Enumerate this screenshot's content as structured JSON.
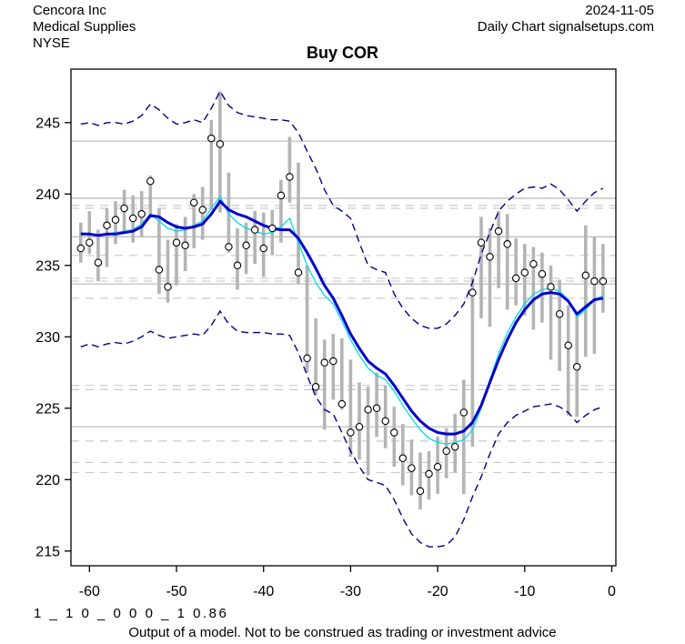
{
  "header": {
    "company": "Cencora Inc",
    "sector": "Medical Supplies",
    "exchange": "NYSE",
    "date": "2024-11-05",
    "source": "Daily Chart signalsetups.com"
  },
  "title": "Buy COR",
  "footer": {
    "model_code": "1 _ 1 0 _ 0 0 0 _ 1 0.86",
    "disclaimer": "Output of a model. Not to be construed as trading or investment advice"
  },
  "chart_data": {
    "type": "line",
    "title": "Buy COR",
    "xlabel": "",
    "ylabel": "",
    "x_ticks": [
      -60,
      -50,
      -40,
      -30,
      -20,
      -10,
      0
    ],
    "y_ticks": [
      215,
      220,
      225,
      230,
      235,
      240,
      245
    ],
    "xlim": [
      -62.2,
      0.5
    ],
    "ylim": [
      214.0,
      248.7
    ],
    "grid": "horizontal-only",
    "legend": "none",
    "grid_solid_levels": [
      243.7,
      239.7,
      237.0,
      233.7,
      223.7
    ],
    "grid_dashed_levels": [
      239.2,
      239.0,
      235.7,
      234.1,
      233.9,
      232.7,
      226.6,
      226.3,
      222.7,
      221.2,
      220.5
    ],
    "colors": {
      "moving_average": "#0000cc",
      "fast_line": "#00dde8",
      "band": "#00008b",
      "bar": "#b4b4b4",
      "dot_fill": "#ffffff",
      "dot_stroke": "#000000",
      "grid_solid": "#b8b8b8",
      "grid_dashed": "#c9c9c9",
      "axis": "#000000"
    },
    "days": [
      -61,
      -60,
      -59,
      -58,
      -57,
      -56,
      -55,
      -54,
      -53,
      -52,
      -51,
      -50,
      -49,
      -48,
      -47,
      -46,
      -45,
      -44,
      -43,
      -42,
      -41,
      -40,
      -39,
      -38,
      -37,
      -36,
      -35,
      -34,
      -33,
      -32,
      -31,
      -30,
      -29,
      -28,
      -27,
      -26,
      -25,
      -24,
      -23,
      -22,
      -21,
      -20,
      -19,
      -18,
      -17,
      -16,
      -15,
      -14,
      -13,
      -12,
      -11,
      -10,
      -9,
      -8,
      -7,
      -6,
      -5,
      -4,
      -3,
      -2,
      -1
    ],
    "close": [
      236.2,
      236.6,
      235.2,
      237.8,
      238.2,
      239.0,
      238.3,
      238.6,
      240.9,
      234.7,
      233.5,
      236.6,
      236.4,
      239.4,
      238.9,
      243.9,
      243.5,
      236.3,
      235.0,
      236.4,
      237.5,
      236.2,
      237.6,
      239.9,
      241.2,
      234.5,
      228.5,
      226.5,
      228.2,
      228.3,
      225.3,
      223.3,
      223.7,
      224.9,
      225.0,
      224.1,
      223.3,
      221.5,
      220.8,
      219.2,
      220.4,
      220.9,
      222.0,
      222.3,
      224.7,
      233.1,
      236.6,
      235.6,
      237.4,
      236.5,
      234.1,
      234.5,
      235.1,
      234.4,
      233.5,
      231.6,
      229.4,
      227.9,
      234.3,
      233.9,
      233.9
    ],
    "high": [
      238.0,
      238.8,
      237.5,
      239.0,
      239.5,
      240.3,
      239.9,
      240.2,
      241.3,
      239.0,
      236.8,
      237.9,
      238.4,
      240.0,
      240.5,
      245.2,
      247.2,
      241.5,
      237.6,
      238.0,
      238.8,
      238.7,
      238.9,
      241.0,
      244.0,
      242.2,
      235.0,
      231.3,
      229.8,
      230.2,
      229.9,
      228.4,
      226.8,
      226.5,
      227.5,
      226.6,
      225.1,
      223.9,
      222.8,
      221.9,
      222.0,
      223.0,
      223.6,
      224.6,
      227.0,
      234.2,
      238.4,
      237.6,
      238.8,
      238.6,
      236.9,
      236.5,
      236.3,
      235.9,
      235.0,
      234.0,
      232.2,
      231.5,
      237.8,
      237.0,
      236.5
    ],
    "low": [
      235.2,
      235.8,
      233.9,
      234.9,
      236.5,
      237.2,
      236.6,
      237.0,
      238.4,
      233.0,
      232.4,
      233.6,
      234.6,
      236.2,
      236.8,
      238.9,
      238.7,
      235.9,
      233.3,
      234.4,
      235.1,
      234.2,
      235.7,
      236.6,
      239.4,
      233.7,
      227.5,
      225.9,
      223.5,
      225.6,
      224.9,
      221.6,
      221.4,
      220.3,
      223.0,
      222.2,
      220.9,
      219.6,
      218.9,
      217.9,
      218.6,
      219.0,
      220.1,
      220.5,
      219.0,
      222.3,
      231.3,
      230.7,
      233.4,
      231.9,
      232.2,
      231.5,
      230.5,
      231.0,
      228.4,
      227.6,
      224.5,
      224.4,
      228.6,
      228.8,
      231.7
    ],
    "moving_average": [
      237.2,
      237.2,
      237.1,
      237.2,
      237.2,
      237.3,
      237.4,
      237.7,
      238.5,
      238.4,
      238.0,
      237.7,
      237.6,
      237.7,
      237.9,
      238.6,
      239.5,
      238.9,
      238.6,
      238.4,
      238.1,
      237.8,
      237.6,
      237.5,
      237.5,
      236.9,
      235.9,
      234.8,
      233.6,
      232.7,
      231.5,
      230.2,
      229.2,
      228.3,
      227.8,
      227.4,
      226.6,
      225.7,
      224.8,
      224.1,
      223.6,
      223.3,
      223.2,
      223.2,
      223.4,
      224.0,
      225.2,
      226.8,
      228.4,
      229.8,
      231.0,
      231.9,
      232.6,
      233.0,
      233.1,
      233.0,
      232.5,
      231.6,
      232.1,
      232.6,
      232.7
    ],
    "fast_line": [
      237.3,
      237.2,
      237.1,
      237.2,
      237.3,
      237.4,
      237.5,
      237.9,
      238.6,
      238.1,
      237.6,
      237.4,
      237.5,
      237.8,
      238.1,
      239.0,
      239.8,
      238.6,
      238.0,
      237.6,
      237.4,
      237.2,
      237.3,
      237.7,
      238.3,
      236.6,
      235.0,
      233.8,
      232.9,
      232.3,
      231.1,
      229.8,
      228.7,
      227.8,
      227.3,
      227.0,
      226.2,
      225.2,
      224.3,
      223.5,
      222.9,
      222.6,
      222.5,
      222.6,
      222.8,
      223.5,
      225.0,
      227.0,
      228.8,
      230.3,
      231.4,
      232.3,
      233.0,
      233.3,
      233.4,
      233.2,
      232.6,
      231.4,
      231.9,
      232.6,
      232.9
    ],
    "upper_band": [
      244.9,
      245.0,
      244.8,
      245.0,
      245.0,
      244.9,
      245.1,
      245.5,
      246.3,
      245.9,
      245.3,
      244.9,
      245.0,
      245.2,
      245.0,
      246.0,
      247.2,
      246.2,
      245.7,
      245.5,
      245.4,
      245.3,
      245.2,
      245.2,
      245.1,
      244.3,
      243.0,
      241.8,
      240.3,
      239.2,
      238.8,
      238.3,
      236.6,
      235.0,
      234.7,
      234.5,
      233.0,
      232.0,
      231.3,
      230.8,
      230.6,
      230.6,
      230.9,
      231.5,
      232.3,
      233.8,
      235.8,
      237.3,
      238.8,
      239.5,
      240.0,
      240.4,
      240.5,
      240.4,
      240.7,
      240.3,
      239.6,
      238.8,
      239.5,
      240.1,
      240.4
    ],
    "lower_band": [
      229.3,
      229.5,
      229.3,
      229.5,
      229.6,
      229.5,
      229.7,
      230.0,
      230.4,
      230.1,
      229.9,
      230.0,
      230.1,
      230.2,
      230.1,
      230.8,
      231.8,
      230.9,
      230.4,
      230.3,
      230.3,
      230.3,
      230.2,
      230.2,
      230.1,
      228.9,
      227.3,
      225.8,
      224.9,
      224.6,
      223.3,
      222.0,
      220.9,
      220.0,
      219.8,
      219.6,
      218.6,
      217.3,
      216.2,
      215.6,
      215.3,
      215.3,
      215.4,
      216.0,
      217.2,
      218.8,
      220.2,
      221.8,
      223.2,
      224.0,
      224.5,
      224.8,
      225.1,
      225.2,
      225.3,
      225.1,
      224.7,
      224.0,
      224.5,
      224.9,
      225.1
    ]
  }
}
